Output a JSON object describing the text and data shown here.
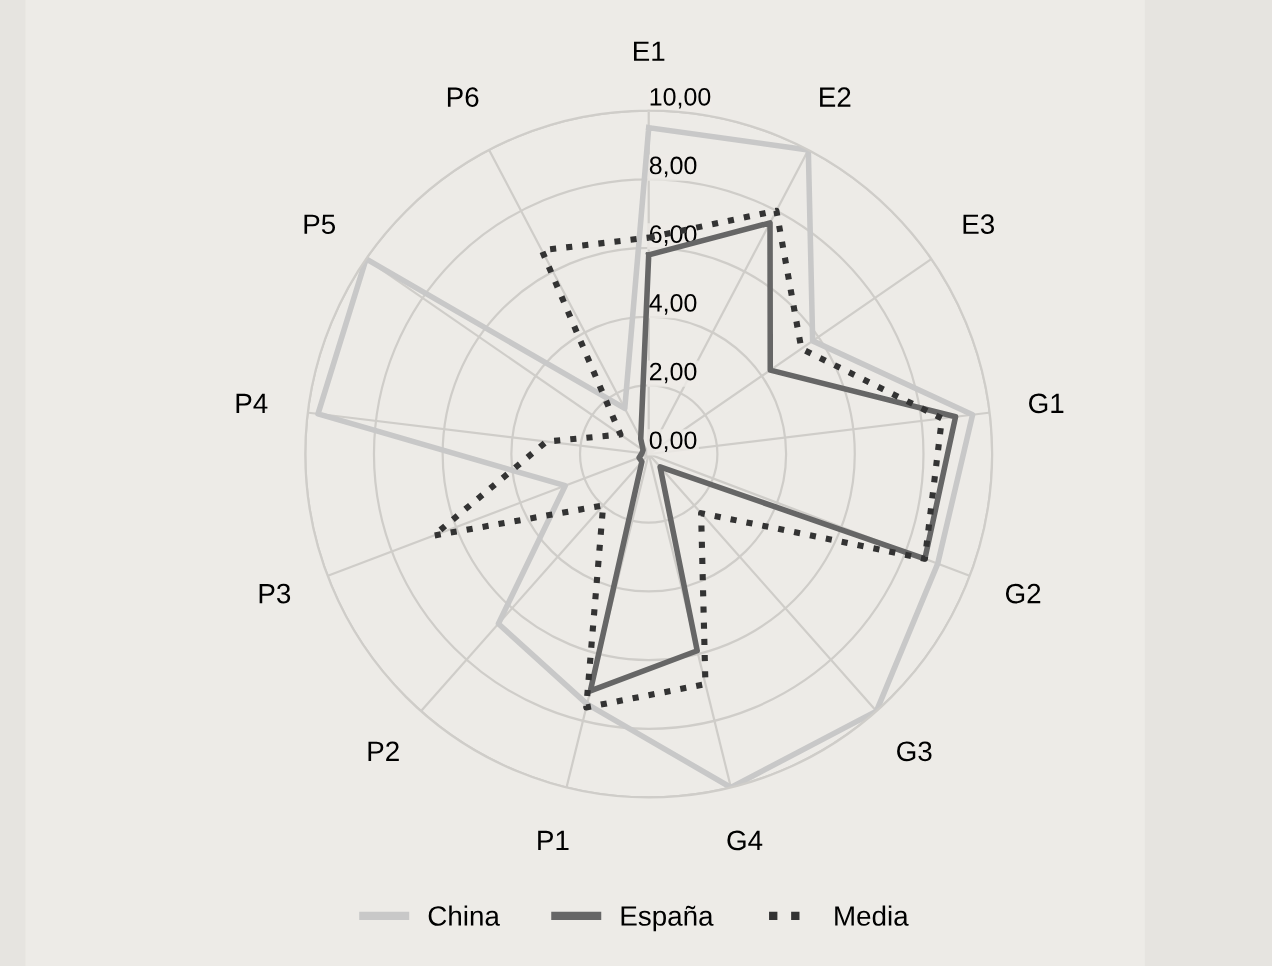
{
  "chart_data": {
    "type": "radar",
    "categories": [
      "E1",
      "E2",
      "E3",
      "G1",
      "G2",
      "G3",
      "G4",
      "P1",
      "P2",
      "P3",
      "P4",
      "P5",
      "P6"
    ],
    "series": [
      {
        "name": "China",
        "color": "#c8c8c8",
        "line_style": "solid",
        "values": [
          9.5,
          10,
          5.8,
          9.5,
          9,
          10,
          10,
          7.5,
          6.6,
          2.6,
          9.7,
          10,
          1.5
        ]
      },
      {
        "name": "España",
        "color": "#666666",
        "line_style": "solid",
        "values": [
          5.8,
          7.6,
          4.3,
          9,
          8.6,
          0.5,
          5.9,
          7.1,
          0.3,
          0.3,
          0.2,
          0.2,
          0.5
        ]
      },
      {
        "name": "Media",
        "color": "#333333",
        "line_style": "dotted",
        "values": [
          6.3,
          8,
          5.4,
          8.6,
          8.6,
          2.3,
          6.9,
          7.6,
          2,
          6.7,
          3,
          1,
          6.7
        ]
      }
    ],
    "ylim": [
      0,
      10
    ],
    "yticks": [
      {
        "value": 0,
        "label": "0,00"
      },
      {
        "value": 2,
        "label": "2,00"
      },
      {
        "value": 4,
        "label": "4,00"
      },
      {
        "value": 6,
        "label": "6,00"
      },
      {
        "value": 8,
        "label": "8,00"
      },
      {
        "value": 10,
        "label": "10,00"
      }
    ],
    "grid": true,
    "legend": "bottom",
    "marker": "none"
  }
}
